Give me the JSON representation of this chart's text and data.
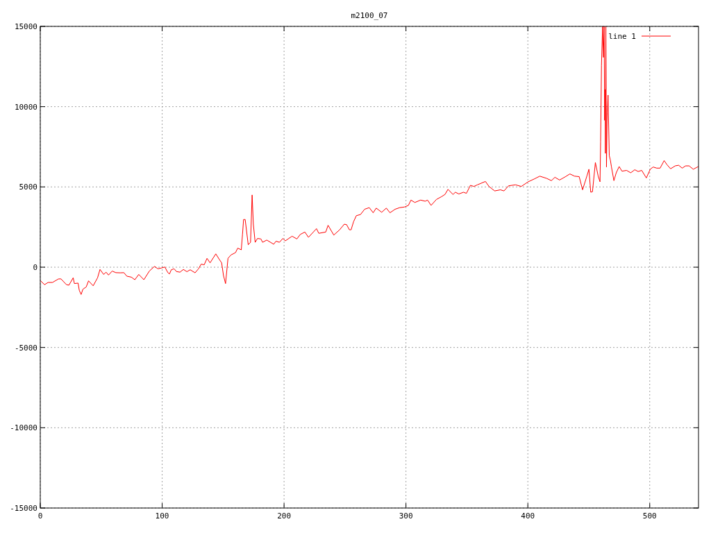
{
  "chart_data": {
    "type": "line",
    "title": "m2100_07",
    "xlim": [
      0,
      540
    ],
    "ylim": [
      -15000,
      15000
    ],
    "xticks": [
      0,
      100,
      200,
      300,
      400,
      500
    ],
    "yticks": [
      -15000,
      -10000,
      -5000,
      0,
      5000,
      10000,
      15000
    ],
    "grid": true,
    "legend": "top right",
    "line_style": "solid",
    "marker": "none",
    "series": [
      {
        "name": "line 1",
        "color": "#ff0000",
        "x": [
          0.3,
          3.5,
          6.4,
          10,
          15,
          17,
          21.5,
          23.5,
          27,
          28,
          31,
          32,
          33.5,
          35,
          37.7,
          39.6,
          43.4,
          47,
          49,
          52,
          54,
          56,
          59,
          62,
          65.6,
          68.6,
          71,
          74.7,
          77.6,
          80.8,
          85,
          89.5,
          93.7,
          96.5,
          99.4,
          102.2,
          104.7,
          106,
          107.5,
          109.8,
          111.7,
          114.6,
          117.4,
          120.3,
          123,
          127,
          129.8,
          132,
          134.5,
          136.8,
          139.3,
          144,
          146.9,
          148.8,
          150.3,
          152,
          154,
          156.4,
          160.2,
          162,
          164.9,
          165.9,
          166.8,
          168.1,
          170.6,
          172.5,
          173.8,
          174.8,
          176.3,
          178.2,
          181,
          182.4,
          185.8,
          191.5,
          193.4,
          196.2,
          199,
          201,
          206.6,
          210.5,
          213.3,
          217.1,
          220,
          226.6,
          228.5,
          234.2,
          236.1,
          240.8,
          245.6,
          249.4,
          251.3,
          253.6,
          255,
          257,
          259.3,
          262.7,
          266.1,
          269.9,
          273.1,
          275.6,
          280.1,
          283.9,
          286.9,
          291.1,
          294.9,
          298.8,
          302,
          304.1,
          307.3,
          312,
          315.8,
          317.7,
          320.6,
          325,
          329.1,
          332,
          334.5,
          338.6,
          340.5,
          343.4,
          347.2,
          349.6,
          352.9,
          355.7,
          358.6,
          365.2,
          368.1,
          372.8,
          377.5,
          380.4,
          384.2,
          389.9,
          394.6,
          400.3,
          405.1,
          409.8,
          415.5,
          419.3,
          422.2,
          426,
          430.7,
          434.5,
          438.3,
          442.1,
          444.9,
          448.4,
          450.1,
          451.6,
          453,
          455.4,
          457.7,
          459.2,
          459.7,
          460.4,
          461.3,
          462,
          462.6,
          463,
          463.4,
          463.6,
          464,
          464.5,
          465.1,
          465.8,
          466.8,
          467.7,
          468.6,
          470.6,
          472.5,
          474.9,
          477.2,
          481,
          484.4,
          487.7,
          490.5,
          493.4,
          497.2,
          500.4,
          502.8,
          505.7,
          508.5,
          511.8,
          514.2,
          517.1,
          520.9,
          523.7,
          526.6,
          529.4,
          532.3,
          535.7,
          539.9
        ],
        "values": [
          -850,
          -1090,
          -950,
          -950,
          -730,
          -730,
          -1090,
          -1120,
          -660,
          -1020,
          -990,
          -1440,
          -1700,
          -1370,
          -1230,
          -850,
          -1160,
          -660,
          -140,
          -450,
          -310,
          -490,
          -240,
          -340,
          -350,
          -340,
          -560,
          -620,
          -780,
          -450,
          -780,
          -240,
          50,
          -100,
          -50,
          10,
          -340,
          -420,
          -160,
          -100,
          -270,
          -310,
          -140,
          -280,
          -160,
          -350,
          -100,
          190,
          150,
          550,
          270,
          830,
          480,
          270,
          -520,
          -1020,
          550,
          760,
          910,
          1190,
          1080,
          2040,
          2970,
          2970,
          1400,
          1550,
          4500,
          2680,
          1550,
          1790,
          1760,
          1550,
          1690,
          1430,
          1620,
          1550,
          1790,
          1640,
          1930,
          1760,
          2040,
          2190,
          1860,
          2400,
          2110,
          2190,
          2610,
          2000,
          2330,
          2680,
          2650,
          2330,
          2330,
          2830,
          3210,
          3280,
          3610,
          3710,
          3390,
          3680,
          3420,
          3680,
          3390,
          3610,
          3710,
          3750,
          3850,
          4180,
          4030,
          4180,
          4110,
          4180,
          3850,
          4220,
          4390,
          4530,
          4850,
          4530,
          4670,
          4560,
          4670,
          4600,
          5100,
          5030,
          5130,
          5340,
          5030,
          4750,
          4820,
          4750,
          5070,
          5130,
          5030,
          5320,
          5490,
          5670,
          5530,
          5390,
          5600,
          5430,
          5630,
          5810,
          5670,
          5640,
          4820,
          5670,
          6100,
          4670,
          4700,
          6520,
          5670,
          5320,
          7800,
          12570,
          15000,
          13070,
          15000,
          9150,
          11070,
          7090,
          15000,
          6240,
          9650,
          10720,
          6950,
          6670,
          6240,
          5390,
          5880,
          6270,
          5980,
          6030,
          5880,
          6070,
          5960,
          6030,
          5560,
          6100,
          6240,
          6170,
          6170,
          6640,
          6380,
          6130,
          6310,
          6350,
          6170,
          6310,
          6310,
          6100,
          6270
        ]
      }
    ]
  }
}
